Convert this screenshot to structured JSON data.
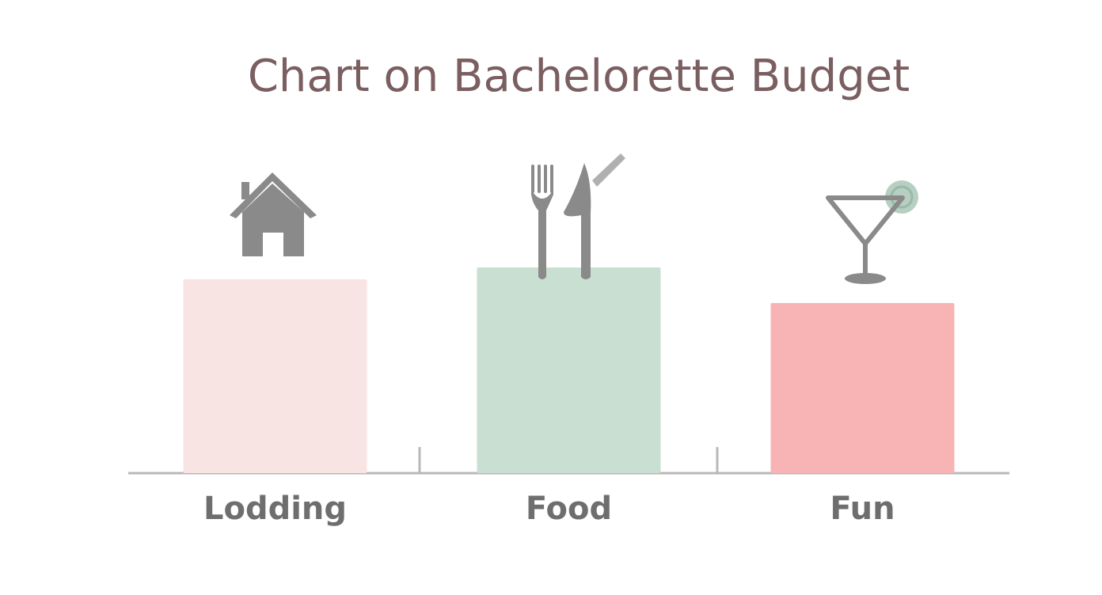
{
  "chart_data": {
    "type": "bar",
    "title": "Chart on Bachelorette Budget",
    "categories": [
      "Lodding",
      "Food",
      "Fun"
    ],
    "values": [
      49,
      52,
      43
    ],
    "colors": [
      "#f9e4e4",
      "#c9dfd1",
      "#f8b4b4"
    ],
    "ylim": [
      0,
      60
    ]
  }
}
